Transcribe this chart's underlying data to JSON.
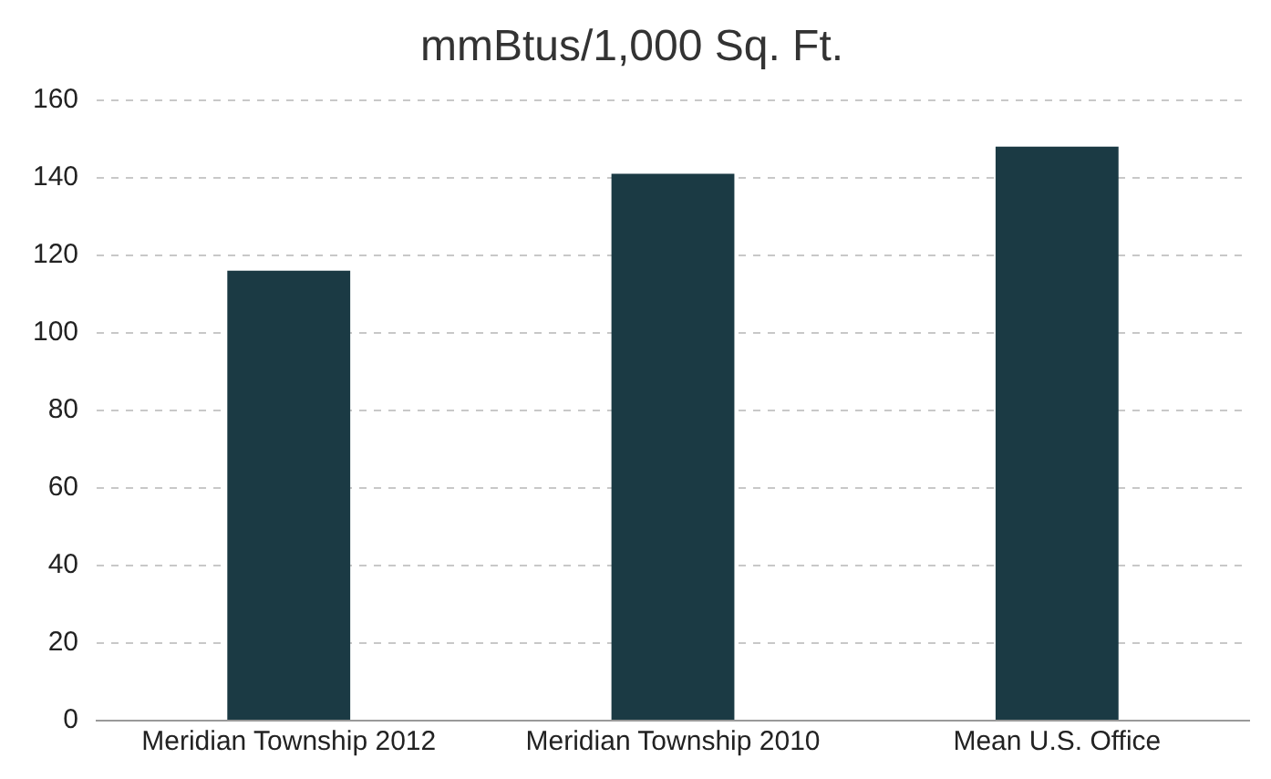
{
  "chart_data": {
    "type": "bar",
    "title": "mmBtus/1,000 Sq. Ft.",
    "categories": [
      "Meridian Township 2012",
      "Meridian Township 2010",
      "Mean U.S. Office"
    ],
    "values": [
      116,
      141,
      148
    ],
    "color": "#1b3a44",
    "ylim": [
      0,
      160
    ],
    "yticks": [
      0,
      20,
      40,
      60,
      80,
      100,
      120,
      140,
      160
    ],
    "grid": "y",
    "legend": false
  }
}
